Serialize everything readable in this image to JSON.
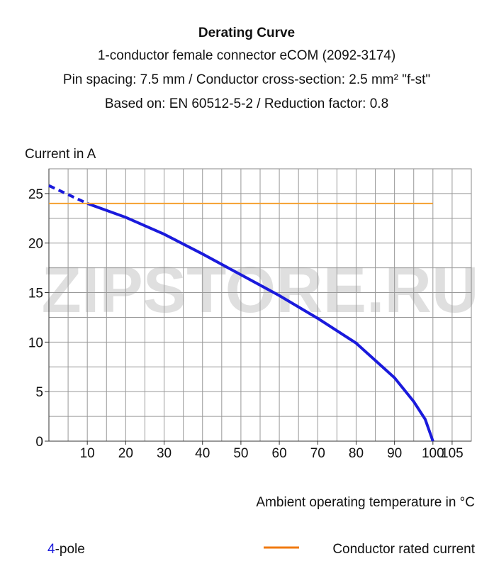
{
  "chart_data": {
    "type": "line",
    "title": "Derating Curve",
    "subtitle": [
      "1-conductor female connector eCOM (2092-3174)",
      "Pin spacing: 7.5 mm / Conductor cross-section: 2.5 mm² \"f-st\"",
      "Based on: EN 60512-5-2 / Reduction factor: 0.8"
    ],
    "y_label": "Current in A",
    "x_label": "Ambient operating temperature in °C",
    "watermark": "ZIPSTORE.RU",
    "xlim": [
      0,
      110
    ],
    "xticks": [
      10,
      20,
      30,
      40,
      50,
      60,
      70,
      80,
      90,
      100,
      105
    ],
    "ylim": [
      0,
      27.5
    ],
    "yticks": [
      0,
      5,
      10,
      15,
      20,
      25
    ],
    "grid": true,
    "grid_step_x": 5,
    "grid_step_y": 2.5,
    "series": [
      {
        "name": "4-pole",
        "color": "#1a1adc",
        "x": [
          10,
          20,
          30,
          40,
          50,
          60,
          70,
          80,
          90,
          95,
          98,
          100
        ],
        "values": [
          24,
          22.6,
          20.9,
          18.9,
          16.8,
          14.7,
          12.4,
          9.9,
          6.4,
          4,
          2.2,
          0
        ],
        "dashed": {
          "x": [
            0,
            10
          ],
          "values": [
            25.8,
            24
          ]
        }
      },
      {
        "name": "Conductor rated current",
        "color": "#f5a030",
        "x": [
          0,
          100
        ],
        "values": [
          24,
          24
        ]
      }
    ]
  }
}
